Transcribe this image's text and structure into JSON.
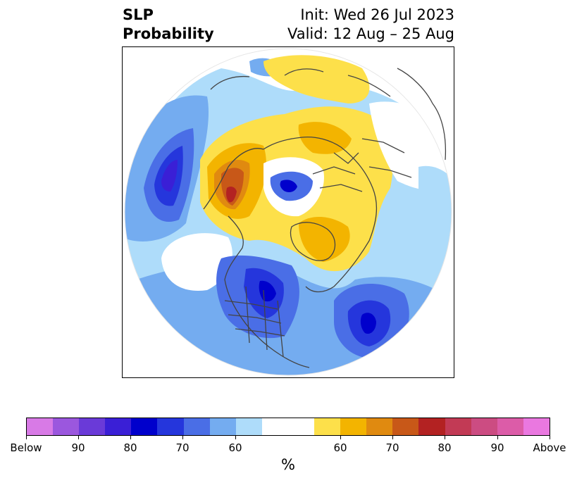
{
  "title": {
    "left_line1": "SLP",
    "left_line2": "Probability",
    "right_line1": "Init: Wed 26 Jul 2023",
    "right_line2": "Valid: 12 Aug – 25 Aug"
  },
  "colorbar": {
    "colors": [
      "#d87ae6",
      "#9b57de",
      "#6a3ad8",
      "#3a1fd6",
      "#0000cc",
      "#2536dc",
      "#4a6ee6",
      "#74acf0",
      "#aedcfa",
      "#ffffff",
      "#ffffff",
      "#fde04a",
      "#f3b400",
      "#e08a10",
      "#c85818",
      "#b32222",
      "#c23a55",
      "#cc4c82",
      "#dc5ca8",
      "#ea78e0"
    ],
    "tick_labels": [
      "Below",
      "90",
      "80",
      "70",
      "60",
      "60",
      "70",
      "80",
      "90",
      "Above"
    ],
    "unit_label": "%"
  },
  "palette": {
    "blue_light": "#aedcfa",
    "blue_mid": "#74acf0",
    "blue": "#4a6ee6",
    "blue_dark": "#2536dc",
    "blue_deep": "#0000cc",
    "yellow": "#fde04a",
    "orange": "#f3b400",
    "orange_dark": "#e08a10",
    "red_orange": "#c85818",
    "red": "#b32222"
  }
}
